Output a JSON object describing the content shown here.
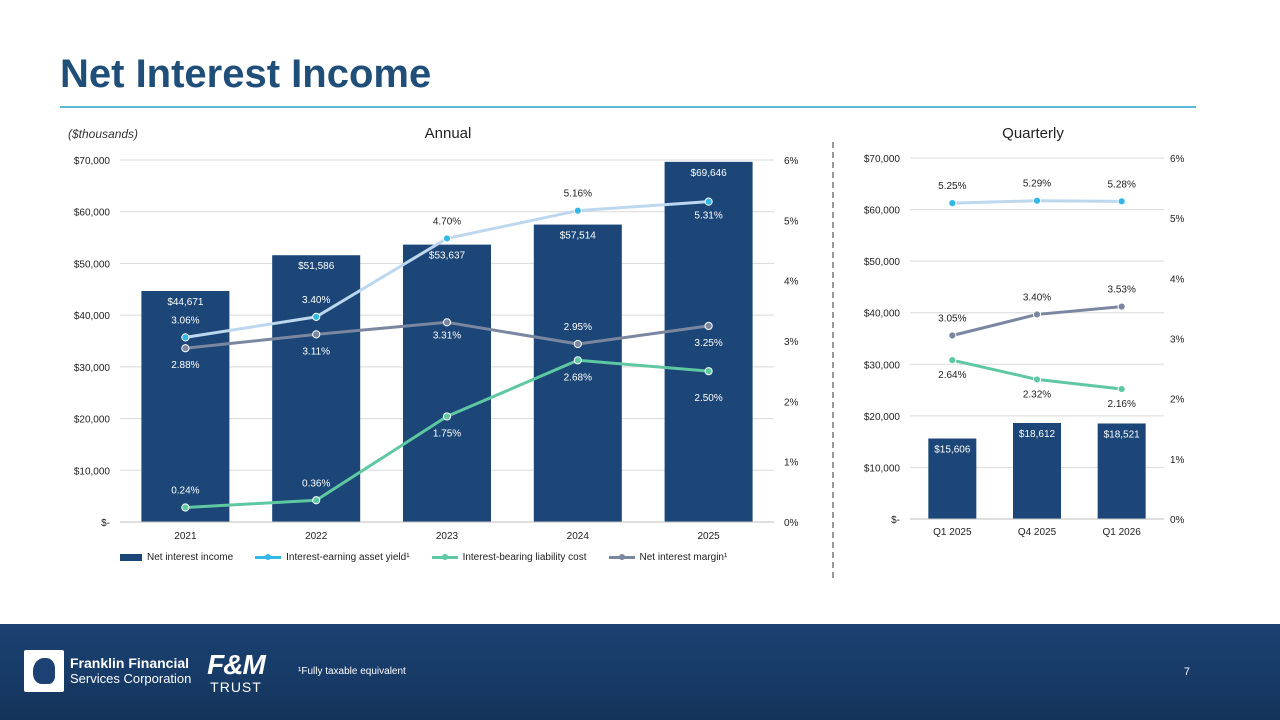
{
  "slide": {
    "title": "Net Interest Income",
    "units_note": "($thousands)",
    "annual_heading": "Annual",
    "quarterly_heading": "Quarterly",
    "footnote": "¹Fully taxable equivalent",
    "page_number": "7"
  },
  "logos": {
    "ffsc_line1": "Franklin Financial",
    "ffsc_line2": "Services Corporation",
    "fm_mark": "F&M",
    "fm_trust": "TRUST"
  },
  "legend": {
    "bar": "Net interest income",
    "yield": "Interest-earning asset yield¹",
    "cost": "Interest-bearing liability cost",
    "nim": "Net interest margin¹"
  },
  "colors": {
    "bar": "#1b4677",
    "yield": "#bdd7ee",
    "yield_marker": "#33b8e6",
    "cost": "#5ec8a2",
    "nim": "#7b86a0",
    "grid": "#d9d9d9"
  },
  "chart_data": [
    {
      "type": "bar",
      "name": "annual",
      "categories": [
        "2021",
        "2022",
        "2023",
        "2024",
        "2025"
      ],
      "values": [
        44671,
        51586,
        53637,
        57514,
        69646
      ],
      "value_labels": [
        "$44,671",
        "$51,586",
        "$53,637",
        "$57,514",
        "$69,646"
      ],
      "ylim": [
        0,
        70000
      ],
      "y_ticks": [
        "$-",
        "$10,000",
        "$20,000",
        "$30,000",
        "$40,000",
        "$50,000",
        "$60,000",
        "$70,000"
      ],
      "y2lim": [
        0,
        6
      ],
      "y2_ticks": [
        "0%",
        "1%",
        "2%",
        "3%",
        "4%",
        "5%",
        "6%"
      ],
      "legend_position": "bottom",
      "series": [
        {
          "name": "Interest-earning asset yield¹",
          "values": [
            3.06,
            3.4,
            4.7,
            5.16,
            5.31
          ],
          "labels": [
            "3.06%",
            "3.40%",
            "4.70%",
            "5.16%",
            "5.31%"
          ]
        },
        {
          "name": "Interest-bearing liability cost",
          "values": [
            0.24,
            0.36,
            1.75,
            2.68,
            2.5
          ],
          "labels": [
            "0.24%",
            "0.36%",
            "1.75%",
            "2.68%",
            "2.50%"
          ]
        },
        {
          "name": "Net interest margin¹",
          "values": [
            2.88,
            3.11,
            3.31,
            2.95,
            3.25
          ],
          "labels": [
            "2.88%",
            "3.11%",
            "3.31%",
            "2.95%",
            "3.25%"
          ]
        }
      ]
    },
    {
      "type": "bar",
      "name": "quarterly",
      "categories": [
        "Q1 2025",
        "Q4 2025",
        "Q1 2026"
      ],
      "values": [
        15606,
        18612,
        18521
      ],
      "value_labels": [
        "$15,606",
        "$18,612",
        "$18,521"
      ],
      "ylim": [
        0,
        70000
      ],
      "y_ticks": [
        "$-",
        "$10,000",
        "$20,000",
        "$30,000",
        "$40,000",
        "$50,000",
        "$60,000",
        "$70,000"
      ],
      "y2lim": [
        0,
        6
      ],
      "y2_ticks": [
        "0%",
        "1%",
        "2%",
        "3%",
        "4%",
        "5%",
        "6%"
      ],
      "series": [
        {
          "name": "Interest-earning asset yield¹",
          "values": [
            5.25,
            5.29,
            5.28
          ],
          "labels": [
            "5.25%",
            "5.29%",
            "5.28%"
          ]
        },
        {
          "name": "Interest-bearing liability cost",
          "values": [
            2.64,
            2.32,
            2.16
          ],
          "labels": [
            "2.64%",
            "2.32%",
            "2.16%"
          ]
        },
        {
          "name": "Net interest margin¹",
          "values": [
            3.05,
            3.4,
            3.53
          ],
          "labels": [
            "3.05%",
            "3.40%",
            "3.53%"
          ]
        }
      ]
    }
  ]
}
